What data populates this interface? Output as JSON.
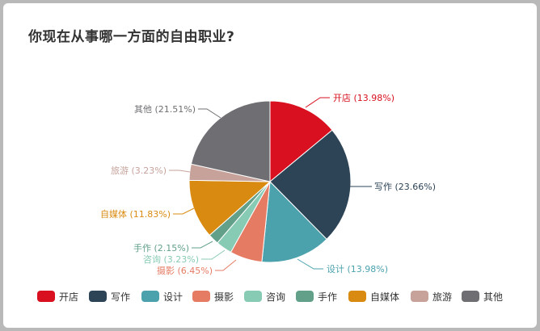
{
  "chart_data": {
    "type": "pie",
    "title": "你现在从事哪一方面的自由职业?",
    "legend_position": "bottom",
    "start_angle": "top, clockwise",
    "slices": [
      {
        "name": "开店",
        "value": 13.98,
        "label": "开店 (13.98%)",
        "color": "#d8101f"
      },
      {
        "name": "写作",
        "value": 23.66,
        "label": "写作 (23.66%)",
        "color": "#2d4457"
      },
      {
        "name": "设计",
        "value": 13.98,
        "label": "设计 (13.98%)",
        "color": "#4ba2ad"
      },
      {
        "name": "摄影",
        "value": 6.45,
        "label": "摄影 (6.45%)",
        "color": "#e67b64"
      },
      {
        "name": "咨询",
        "value": 3.23,
        "label": "咨询 (3.23%)",
        "color": "#88cbb4"
      },
      {
        "name": "手作",
        "value": 2.15,
        "label": "手作 (2.15%)",
        "color": "#62a08a"
      },
      {
        "name": "自媒体",
        "value": 11.83,
        "label": "自媒体 (11.83%)",
        "color": "#d98b11"
      },
      {
        "name": "旅游",
        "value": 3.23,
        "label": "旅游 (3.23%)",
        "color": "#c6a29b"
      },
      {
        "name": "其他",
        "value": 21.51,
        "label": "其他 (21.51%)",
        "color": "#6f6e73"
      }
    ]
  }
}
